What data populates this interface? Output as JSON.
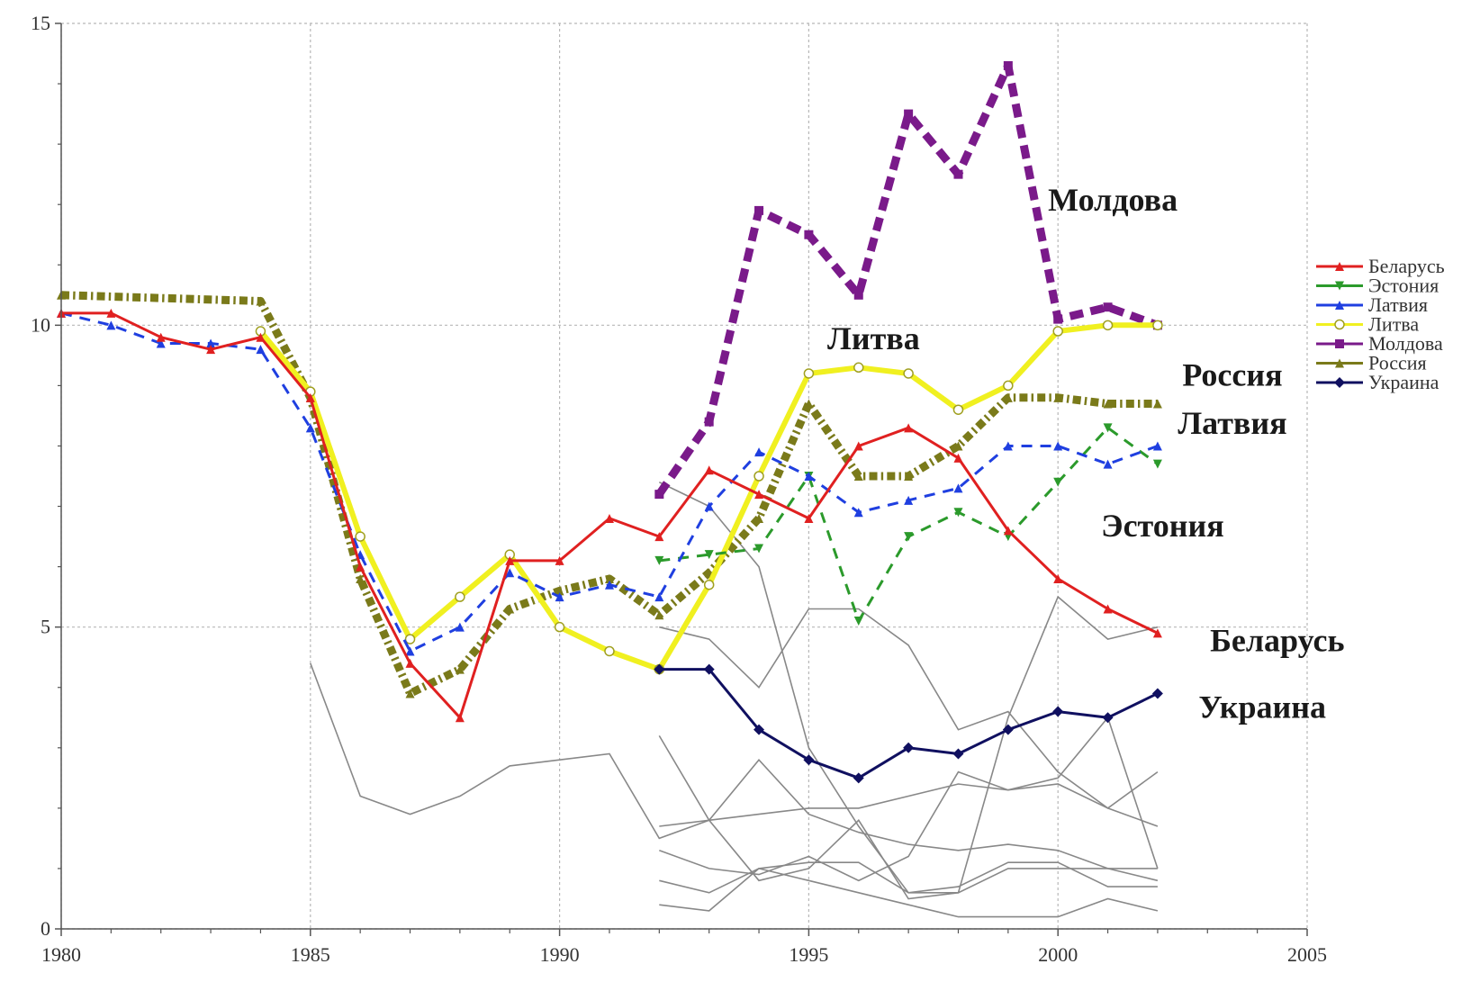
{
  "chart_data": {
    "type": "line",
    "title": "",
    "xlabel": "",
    "ylabel": "",
    "xlim": [
      1980,
      2005
    ],
    "ylim": [
      0,
      15
    ],
    "x_ticks": [
      "1980",
      "1985",
      "1990",
      "1995",
      "2000",
      "2005"
    ],
    "y_ticks": [
      "0",
      "5",
      "10",
      "15"
    ],
    "grid": true,
    "legend_position": "right",
    "series": [
      {
        "name": "Беларусь",
        "color": "#e02020",
        "dash": "solid",
        "width": 3,
        "marker": "triangle",
        "points": [
          [
            1980,
            10.2
          ],
          [
            1981,
            10.2
          ],
          [
            1982,
            9.8
          ],
          [
            1983,
            9.6
          ],
          [
            1984,
            9.8
          ],
          [
            1985,
            8.8
          ],
          [
            1986,
            6.0
          ],
          [
            1987,
            4.4
          ],
          [
            1988,
            3.5
          ],
          [
            1989,
            6.1
          ],
          [
            1990,
            6.1
          ],
          [
            1991,
            6.8
          ],
          [
            1992,
            6.5
          ],
          [
            1993,
            7.6
          ],
          [
            1994,
            7.2
          ],
          [
            1995,
            6.8
          ],
          [
            1996,
            8.0
          ],
          [
            1997,
            8.3
          ],
          [
            1998,
            7.8
          ],
          [
            1999,
            6.6
          ],
          [
            2000,
            5.8
          ],
          [
            2001,
            5.3
          ],
          [
            2002,
            4.9
          ]
        ]
      },
      {
        "name": "Эстония",
        "color": "#2b9a2b",
        "dash": "dashed",
        "width": 3,
        "marker": "triangle-down",
        "points": [
          [
            1992,
            6.1
          ],
          [
            1993,
            6.2
          ],
          [
            1994,
            6.3
          ],
          [
            1995,
            7.5
          ],
          [
            1996,
            5.1
          ],
          [
            1997,
            6.5
          ],
          [
            1998,
            6.9
          ],
          [
            1999,
            6.5
          ],
          [
            2000,
            7.4
          ],
          [
            2001,
            8.3
          ],
          [
            2002,
            7.7
          ]
        ]
      },
      {
        "name": "Латвия",
        "color": "#1f3fe0",
        "dash": "dashed",
        "width": 3,
        "marker": "triangle",
        "points": [
          [
            1980,
            10.2
          ],
          [
            1981,
            10.0
          ],
          [
            1982,
            9.7
          ],
          [
            1983,
            9.7
          ],
          [
            1984,
            9.6
          ],
          [
            1985,
            8.3
          ],
          [
            1986,
            6.2
          ],
          [
            1987,
            4.6
          ],
          [
            1988,
            5.0
          ],
          [
            1989,
            5.9
          ],
          [
            1990,
            5.5
          ],
          [
            1991,
            5.7
          ],
          [
            1992,
            5.5
          ],
          [
            1993,
            7.0
          ],
          [
            1994,
            7.9
          ],
          [
            1995,
            7.5
          ],
          [
            1996,
            6.9
          ],
          [
            1997,
            7.1
          ],
          [
            1998,
            7.3
          ],
          [
            1999,
            8.0
          ],
          [
            2000,
            8.0
          ],
          [
            2001,
            7.7
          ],
          [
            2002,
            8.0
          ]
        ]
      },
      {
        "name": "Литва",
        "color": "#f0f020",
        "dash": "solid",
        "width": 6,
        "marker": "circle",
        "points": [
          [
            1984,
            9.9
          ],
          [
            1985,
            8.9
          ],
          [
            1986,
            6.5
          ],
          [
            1987,
            4.8
          ],
          [
            1988,
            5.5
          ],
          [
            1989,
            6.2
          ],
          [
            1990,
            5.0
          ],
          [
            1991,
            4.6
          ],
          [
            1992,
            4.3
          ],
          [
            1993,
            5.7
          ],
          [
            1994,
            7.5
          ],
          [
            1995,
            9.2
          ],
          [
            1996,
            9.3
          ],
          [
            1997,
            9.2
          ],
          [
            1998,
            8.6
          ],
          [
            1999,
            9.0
          ],
          [
            2000,
            9.9
          ],
          [
            2001,
            10.0
          ],
          [
            2002,
            10.0
          ]
        ]
      },
      {
        "name": "Молдова",
        "color": "#7a1a8a",
        "dash": "longdash",
        "width": 9,
        "marker": "square",
        "points": [
          [
            1992,
            7.2
          ],
          [
            1993,
            8.4
          ],
          [
            1994,
            11.9
          ],
          [
            1995,
            11.5
          ],
          [
            1996,
            10.5
          ],
          [
            1997,
            13.5
          ],
          [
            1998,
            12.5
          ],
          [
            1999,
            14.3
          ],
          [
            2000,
            10.1
          ],
          [
            2001,
            10.3
          ],
          [
            2002,
            10.0
          ]
        ]
      },
      {
        "name": "Россия",
        "color": "#7a7a1a",
        "dash": "dashdot",
        "width": 9,
        "marker": "triangle",
        "points": [
          [
            1980,
            10.5
          ],
          [
            1984,
            10.4
          ],
          [
            1985,
            8.8
          ],
          [
            1986,
            5.8
          ],
          [
            1987,
            3.9
          ],
          [
            1988,
            4.3
          ],
          [
            1989,
            5.3
          ],
          [
            1990,
            5.6
          ],
          [
            1991,
            5.8
          ],
          [
            1992,
            5.2
          ],
          [
            1993,
            5.9
          ],
          [
            1994,
            6.8
          ],
          [
            1995,
            8.7
          ],
          [
            1996,
            7.5
          ],
          [
            1997,
            7.5
          ],
          [
            1998,
            8.0
          ],
          [
            1999,
            8.8
          ],
          [
            2000,
            8.8
          ],
          [
            2001,
            8.7
          ],
          [
            2002,
            8.7
          ]
        ]
      },
      {
        "name": "Украина",
        "color": "#101060",
        "dash": "solid",
        "width": 3,
        "marker": "diamond",
        "points": [
          [
            1992,
            4.3
          ],
          [
            1993,
            4.3
          ],
          [
            1994,
            3.3
          ],
          [
            1995,
            2.8
          ],
          [
            1996,
            2.5
          ],
          [
            1997,
            3.0
          ],
          [
            1998,
            2.9
          ],
          [
            1999,
            3.3
          ],
          [
            2000,
            3.6
          ],
          [
            2001,
            3.5
          ],
          [
            2002,
            3.9
          ]
        ]
      }
    ],
    "background_series": [
      {
        "color": "#888888",
        "points": [
          [
            1985,
            4.4
          ],
          [
            1986,
            2.2
          ],
          [
            1987,
            1.9
          ],
          [
            1988,
            2.2
          ],
          [
            1989,
            2.7
          ],
          [
            1990,
            2.8
          ],
          [
            1991,
            2.9
          ],
          [
            1992,
            1.5
          ],
          [
            1993,
            1.8
          ],
          [
            1994,
            1.9
          ],
          [
            1995,
            2.0
          ],
          [
            1996,
            2.0
          ],
          [
            1997,
            2.2
          ],
          [
            1998,
            2.4
          ],
          [
            1999,
            2.3
          ],
          [
            2000,
            2.4
          ],
          [
            2001,
            2.0
          ],
          [
            2002,
            1.7
          ]
        ]
      },
      {
        "color": "#888888",
        "points": [
          [
            1992,
            7.4
          ],
          [
            1993,
            7.0
          ],
          [
            1994,
            6.0
          ],
          [
            1995,
            3.0
          ],
          [
            1996,
            1.7
          ],
          [
            1997,
            0.6
          ],
          [
            1998,
            0.6
          ],
          [
            1999,
            3.5
          ],
          [
            2000,
            5.5
          ],
          [
            2001,
            4.8
          ],
          [
            2002,
            5.0
          ]
        ]
      },
      {
        "color": "#888888",
        "points": [
          [
            1992,
            5.0
          ],
          [
            1993,
            4.8
          ],
          [
            1994,
            4.0
          ],
          [
            1995,
            5.3
          ],
          [
            1996,
            5.3
          ],
          [
            1997,
            4.7
          ],
          [
            1998,
            3.3
          ],
          [
            1999,
            3.6
          ],
          [
            2000,
            2.6
          ],
          [
            2001,
            2.0
          ],
          [
            2002,
            2.6
          ]
        ]
      },
      {
        "color": "#888888",
        "points": [
          [
            1992,
            3.2
          ],
          [
            1993,
            1.8
          ],
          [
            1994,
            0.8
          ],
          [
            1995,
            1.0
          ],
          [
            1996,
            1.8
          ],
          [
            1997,
            0.5
          ],
          [
            1998,
            0.6
          ],
          [
            1999,
            1.0
          ],
          [
            2000,
            1.0
          ],
          [
            2001,
            1.0
          ],
          [
            2002,
            1.0
          ]
        ]
      },
      {
        "color": "#888888",
        "points": [
          [
            1992,
            1.7
          ],
          [
            1993,
            1.8
          ],
          [
            1994,
            2.8
          ],
          [
            1995,
            1.9
          ],
          [
            1996,
            1.6
          ],
          [
            1997,
            1.4
          ],
          [
            1998,
            1.3
          ],
          [
            1999,
            1.4
          ],
          [
            2000,
            1.3
          ],
          [
            2001,
            1.0
          ],
          [
            2002,
            0.8
          ]
        ]
      },
      {
        "color": "#888888",
        "points": [
          [
            1992,
            1.3
          ],
          [
            1993,
            1.0
          ],
          [
            1994,
            0.9
          ],
          [
            1995,
            1.2
          ],
          [
            1996,
            0.8
          ],
          [
            1997,
            1.2
          ],
          [
            1998,
            2.6
          ],
          [
            1999,
            2.3
          ],
          [
            2000,
            2.5
          ],
          [
            2001,
            3.5
          ],
          [
            2002,
            1.0
          ]
        ]
      },
      {
        "color": "#888888",
        "points": [
          [
            1992,
            0.8
          ],
          [
            1993,
            0.6
          ],
          [
            1994,
            1.0
          ],
          [
            1995,
            1.1
          ],
          [
            1996,
            1.1
          ],
          [
            1997,
            0.6
          ],
          [
            1998,
            0.7
          ],
          [
            1999,
            1.1
          ],
          [
            2000,
            1.1
          ],
          [
            2001,
            0.7
          ],
          [
            2002,
            0.7
          ]
        ]
      },
      {
        "color": "#888888",
        "points": [
          [
            1992,
            0.4
          ],
          [
            1993,
            0.3
          ],
          [
            1994,
            1.0
          ],
          [
            1995,
            0.8
          ],
          [
            1996,
            0.6
          ],
          [
            1997,
            0.4
          ],
          [
            1998,
            0.2
          ],
          [
            1999,
            0.2
          ],
          [
            2000,
            0.2
          ],
          [
            2001,
            0.5
          ],
          [
            2002,
            0.3
          ]
        ]
      }
    ],
    "annotations": [
      {
        "text": "Молдова",
        "x": 2001.1,
        "y": 11.9
      },
      {
        "text": "Литва",
        "x": 1996.3,
        "y": 9.6
      },
      {
        "text": "Россия",
        "x": 2003.5,
        "y": 9.0
      },
      {
        "text": "Латвия",
        "x": 2003.5,
        "y": 8.2
      },
      {
        "text": "Эстония",
        "x": 2002.1,
        "y": 6.5
      },
      {
        "text": "Беларусь",
        "x": 2004.4,
        "y": 4.6
      },
      {
        "text": "Украина",
        "x": 2004.1,
        "y": 3.5
      }
    ]
  }
}
